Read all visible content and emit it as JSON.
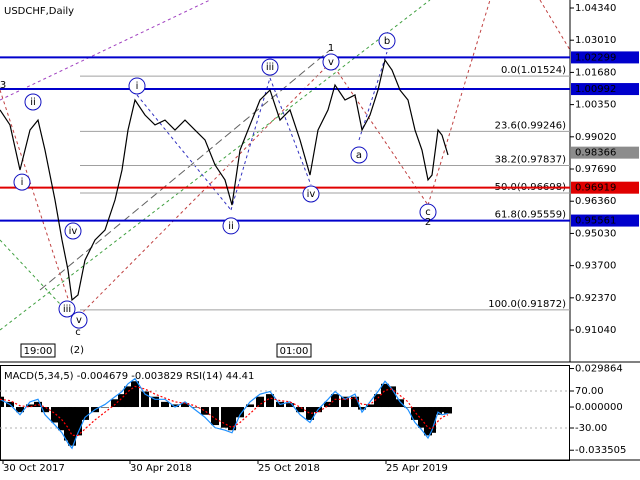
{
  "chart_data": [
    {
      "type": "line",
      "title": "USDCHF,Daily",
      "xlim": [
        0,
        570
      ],
      "ylim": [
        0.8972,
        1.0467
      ],
      "yticks": [
        {
          "value": 1.0434,
          "label": "1.04340"
        },
        {
          "value": 1.0301,
          "label": "1.03010"
        },
        {
          "value": 1.0168,
          "label": "1.01680"
        },
        {
          "value": 1.0035,
          "label": "1.00350"
        },
        {
          "value": 0.9902,
          "label": "0.99020"
        },
        {
          "value": 0.9769,
          "label": "0.97690"
        },
        {
          "value": 0.9636,
          "label": "0.96360"
        },
        {
          "value": 0.9503,
          "label": "0.95030"
        },
        {
          "value": 0.937,
          "label": "0.93700"
        },
        {
          "value": 0.9237,
          "label": "0.92370"
        },
        {
          "value": 0.9104,
          "label": "0.91040"
        }
      ],
      "x": [
        0,
        10,
        20,
        30,
        38,
        45,
        55,
        62,
        68,
        72,
        78,
        85,
        95,
        105,
        115,
        122,
        128,
        135,
        145,
        155,
        165,
        175,
        185,
        195,
        205,
        215,
        225,
        232,
        240,
        250,
        260,
        270,
        280,
        290,
        300,
        310,
        318,
        328,
        335,
        345,
        355,
        362,
        370,
        378,
        385,
        392,
        400,
        408,
        415,
        422,
        428,
        432,
        438,
        442,
        448
      ],
      "series": [
        {
          "color": "#000000",
          "values": [
            1.0013,
            0.9951,
            0.9765,
            0.993,
            0.9971,
            0.9847,
            0.9641,
            0.9476,
            0.9352,
            0.9228,
            0.9249,
            0.9393,
            0.9476,
            0.9517,
            0.9641,
            0.9765,
            0.993,
            1.0054,
            0.9992,
            0.9951,
            0.9971,
            0.993,
            0.9971,
            0.993,
            0.9889,
            0.9786,
            0.9724,
            0.962,
            0.9847,
            0.9951,
            1.0054,
            1.0095,
            0.9971,
            1.0013,
            0.9889,
            0.9744,
            0.993,
            1.0013,
            1.0116,
            1.0054,
            1.0075,
            0.993,
            0.9992,
            1.0095,
            1.0219,
            1.0178,
            1.0095,
            1.0054,
            0.993,
            0.9847,
            0.9724,
            0.9744,
            0.993,
            0.9909,
            0.9827
          ]
        }
      ],
      "levels": [
        {
          "value": 1.02299,
          "color": "#0000cc"
        },
        {
          "value": 1.00992,
          "color": "#0000cc"
        },
        {
          "value": 0.96919,
          "color": "#e00000"
        },
        {
          "value": 0.95561,
          "color": "#0000cc"
        }
      ],
      "last_price": {
        "value": 0.98366,
        "color": "#8c8c8c"
      },
      "fibonacci": [
        {
          "value": 1.01524,
          "label": "0.0(1.01524)"
        },
        {
          "value": 0.99246,
          "label": "23.6(0.99246)"
        },
        {
          "value": 0.97837,
          "label": "38.2(0.97837)"
        },
        {
          "value": 0.96698,
          "label": "50.0(0.96698)"
        },
        {
          "value": 0.95559,
          "label": "61.8(0.95559)"
        },
        {
          "value": 0.91872,
          "label": "100.0(0.91872)"
        }
      ],
      "annotations": [
        {
          "text": "3",
          "x": 3,
          "y": 1.0116,
          "color": "#c00000",
          "circled": false
        },
        {
          "text": "ii",
          "x": 33,
          "y": 1.0046,
          "color": "#1010c0",
          "circled": true
        },
        {
          "text": "i",
          "x": 22,
          "y": 0.9715,
          "color": "#1010c0",
          "circled": true
        },
        {
          "text": "iv",
          "x": 73,
          "y": 0.9513,
          "color": "#1010c0",
          "circled": true
        },
        {
          "text": "iii",
          "x": 67,
          "y": 0.9191,
          "color": "#1010c0",
          "circled": true
        },
        {
          "text": "v",
          "x": 79,
          "y": 0.9145,
          "color": "#1010c0",
          "circled": true
        },
        {
          "text": "c",
          "x": 78,
          "y": 0.9096,
          "color": "#c00000",
          "circled": false
        },
        {
          "text": "(2)",
          "x": 77,
          "y": 0.9022,
          "color": "#008000",
          "circled": false
        },
        {
          "text": "i",
          "x": 137,
          "y": 1.0112,
          "color": "#1010c0",
          "circled": true
        },
        {
          "text": "iii",
          "x": 270,
          "y": 1.019,
          "color": "#1010c0",
          "circled": true
        },
        {
          "text": "ii",
          "x": 231,
          "y": 0.9534,
          "color": "#1010c0",
          "circled": true
        },
        {
          "text": "1",
          "x": 331,
          "y": 1.0269,
          "color": "#c00000",
          "circled": false
        },
        {
          "text": "v",
          "x": 331,
          "y": 1.0211,
          "color": "#1010c0",
          "circled": true
        },
        {
          "text": "iv",
          "x": 311,
          "y": 0.9666,
          "color": "#1010c0",
          "circled": true
        },
        {
          "text": "a",
          "x": 359,
          "y": 0.9827,
          "color": "#1010c0",
          "circled": true
        },
        {
          "text": "b",
          "x": 387,
          "y": 1.0298,
          "color": "#1010c0",
          "circled": true
        },
        {
          "text": "c",
          "x": 428,
          "y": 0.9591,
          "color": "#1010c0",
          "circled": true
        },
        {
          "text": "2",
          "x": 428,
          "y": 0.955,
          "color": "#c00000",
          "circled": false
        }
      ],
      "time_markers": [
        {
          "value": 38,
          "label": "19:00"
        },
        {
          "value": 294,
          "label": "01:00"
        }
      ]
    },
    {
      "type": "macd",
      "title": "MACD(5,34,5) -0.004679 -0.003829 RSI(14) 44.41",
      "xlim": [
        0,
        570
      ],
      "ylim": [
        -0.0411,
        0.0326
      ],
      "yticks": [
        {
          "value": 0.029864,
          "label": "0.029864"
        },
        {
          "value": 0,
          "label": "0.000000"
        },
        {
          "value": -0.033505,
          "label": "-0.033505"
        }
      ],
      "y2lim": [
        -116.5,
        140.3
      ],
      "y2ticks": [
        {
          "value": 70,
          "label": "70.00"
        },
        {
          "value": -30,
          "label": "-30.00"
        }
      ],
      "xticks": [
        {
          "value": 3,
          "label": "30 Oct 2017"
        },
        {
          "value": 130,
          "label": "30 Apr 2018"
        },
        {
          "value": 258,
          "label": "25 Oct 2018"
        },
        {
          "value": 386,
          "label": "25 Apr 2019"
        }
      ],
      "x": [
        0,
        10,
        20,
        30,
        38,
        45,
        55,
        62,
        68,
        72,
        78,
        85,
        95,
        105,
        115,
        122,
        128,
        135,
        145,
        155,
        165,
        175,
        185,
        195,
        205,
        215,
        225,
        232,
        240,
        250,
        260,
        270,
        280,
        290,
        300,
        310,
        318,
        328,
        335,
        345,
        355,
        362,
        370,
        378,
        385,
        392,
        400,
        408,
        415,
        422,
        428,
        432,
        438,
        442,
        448
      ],
      "series": [
        {
          "type": "bar",
          "color": "#000000",
          "values": [
            0.008,
            0.004,
            -0.004,
            0.002,
            0.004,
            -0.004,
            -0.012,
            -0.018,
            -0.026,
            -0.03,
            -0.022,
            -0.01,
            -0.004,
            0.0,
            0.006,
            0.01,
            0.016,
            0.02,
            0.012,
            0.008,
            0.004,
            0.002,
            0.003,
            0.0,
            -0.006,
            -0.014,
            -0.016,
            -0.018,
            -0.008,
            0.002,
            0.008,
            0.01,
            0.004,
            0.003,
            -0.004,
            -0.01,
            -0.004,
            0.004,
            0.01,
            0.008,
            0.008,
            -0.002,
            0.002,
            0.01,
            0.018,
            0.016,
            0.006,
            0.0,
            -0.01,
            -0.016,
            -0.022,
            -0.02,
            -0.006,
            -0.004,
            -0.005
          ]
        },
        {
          "type": "line",
          "color": "#1e90ff",
          "dashed": false,
          "values": [
            0.006,
            0.002,
            -0.006,
            0.004,
            0.006,
            -0.006,
            -0.014,
            -0.02,
            -0.028,
            -0.032,
            -0.02,
            -0.008,
            -0.002,
            0.002,
            0.008,
            0.012,
            0.018,
            0.022,
            0.01,
            0.006,
            0.006,
            0.0,
            0.004,
            -0.002,
            -0.008,
            -0.016,
            -0.018,
            -0.02,
            -0.006,
            0.004,
            0.01,
            0.012,
            0.002,
            0.004,
            -0.006,
            -0.012,
            -0.002,
            0.006,
            0.012,
            0.006,
            0.01,
            -0.004,
            0.004,
            0.012,
            0.02,
            0.014,
            0.004,
            -0.002,
            -0.012,
            -0.018,
            -0.024,
            -0.018,
            -0.004,
            -0.006,
            -0.005
          ]
        },
        {
          "type": "line",
          "color": "#ff0000",
          "dashed": true,
          "values": [
            0.006,
            0.005,
            0.001,
            0.0,
            0.002,
            0.0,
            -0.005,
            -0.01,
            -0.016,
            -0.022,
            -0.022,
            -0.017,
            -0.01,
            -0.004,
            0.002,
            0.007,
            0.012,
            0.016,
            0.014,
            0.01,
            0.007,
            0.004,
            0.003,
            0.001,
            -0.003,
            -0.009,
            -0.013,
            -0.016,
            -0.012,
            -0.005,
            0.002,
            0.007,
            0.005,
            0.004,
            0.0,
            -0.005,
            -0.004,
            0.001,
            0.006,
            0.006,
            0.007,
            0.002,
            0.002,
            0.007,
            0.013,
            0.014,
            0.009,
            0.004,
            -0.004,
            -0.01,
            -0.016,
            -0.017,
            -0.011,
            -0.008,
            -0.006
          ]
        }
      ]
    }
  ]
}
